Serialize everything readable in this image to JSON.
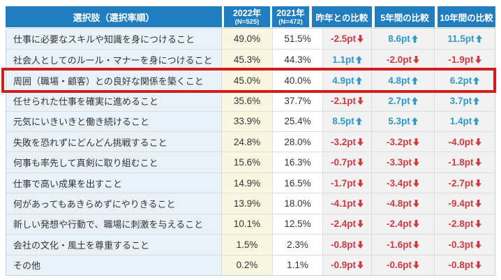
{
  "table": {
    "headers": {
      "choice": "選択肢（選択率順）",
      "y2022": {
        "year": "2022年",
        "n": "(N=525)"
      },
      "y2021": {
        "year": "2021年",
        "n": "(N=472)"
      },
      "cmp_prev": "昨年との比較",
      "cmp_5yr": "5年間の比較",
      "cmp_10yr": "10年間の比較"
    },
    "rows": [
      {
        "label": "仕事に必要なスキルや知識を身につけること",
        "y2022": "49.0%",
        "y2021": "51.5%",
        "prev": {
          "text": "-2.5pt",
          "dir": "down"
        },
        "yr5": {
          "text": "8.6pt",
          "dir": "up"
        },
        "yr10": {
          "text": "11.5pt",
          "dir": "up"
        },
        "highlighted": false
      },
      {
        "label": "社会人としてのルール・マナーを身につけること",
        "y2022": "45.3%",
        "y2021": "44.3%",
        "prev": {
          "text": "1.1pt",
          "dir": "up"
        },
        "yr5": {
          "text": "-2.0pt",
          "dir": "down"
        },
        "yr10": {
          "text": "-1.9pt",
          "dir": "down"
        },
        "highlighted": false
      },
      {
        "label": "周囲（職場・顧客）との良好な関係を築くこと",
        "y2022": "45.0%",
        "y2021": "40.0%",
        "prev": {
          "text": "4.9pt",
          "dir": "up"
        },
        "yr5": {
          "text": "4.8pt",
          "dir": "up"
        },
        "yr10": {
          "text": "6.2pt",
          "dir": "up"
        },
        "highlighted": true
      },
      {
        "label": "任せられた仕事を確実に進めること",
        "y2022": "35.6%",
        "y2021": "37.7%",
        "prev": {
          "text": "-2.1pt",
          "dir": "down"
        },
        "yr5": {
          "text": "2.7pt",
          "dir": "up"
        },
        "yr10": {
          "text": "3.7pt",
          "dir": "up"
        },
        "highlighted": false
      },
      {
        "label": "元気にいきいきと働き続けること",
        "y2022": "33.9%",
        "y2021": "25.4%",
        "prev": {
          "text": "8.5pt",
          "dir": "up"
        },
        "yr5": {
          "text": "5.3pt",
          "dir": "up"
        },
        "yr10": {
          "text": "1.4pt",
          "dir": "up"
        },
        "highlighted": false
      },
      {
        "label": "失敗を恐れずにどんどん挑戦すること",
        "y2022": "24.8%",
        "y2021": "28.0%",
        "prev": {
          "text": "-3.2pt",
          "dir": "down"
        },
        "yr5": {
          "text": "-3.2pt",
          "dir": "down"
        },
        "yr10": {
          "text": "-4.0pt",
          "dir": "down"
        },
        "highlighted": false
      },
      {
        "label": "何事も率先して真剣に取り組むこと",
        "y2022": "15.6%",
        "y2021": "16.3%",
        "prev": {
          "text": "-0.7pt",
          "dir": "down"
        },
        "yr5": {
          "text": "-3.3pt",
          "dir": "down"
        },
        "yr10": {
          "text": "-1.8pt",
          "dir": "down"
        },
        "highlighted": false
      },
      {
        "label": "仕事で高い成果を出すこと",
        "y2022": "14.9%",
        "y2021": "16.5%",
        "prev": {
          "text": "-1.7pt",
          "dir": "down"
        },
        "yr5": {
          "text": "-3.4pt",
          "dir": "down"
        },
        "yr10": {
          "text": "-2.7pt",
          "dir": "down"
        },
        "highlighted": false
      },
      {
        "label": "何があってもあきらめずにやりきること",
        "y2022": "13.9%",
        "y2021": "18.0%",
        "prev": {
          "text": "-4.1pt",
          "dir": "down"
        },
        "yr5": {
          "text": "-4.8pt",
          "dir": "down"
        },
        "yr10": {
          "text": "-9.4pt",
          "dir": "down"
        },
        "highlighted": false
      },
      {
        "label": "新しい発想や行動で、職場に刺激を与えること",
        "y2022": "10.1%",
        "y2021": "12.5%",
        "prev": {
          "text": "-2.4pt",
          "dir": "down"
        },
        "yr5": {
          "text": "-2.4pt",
          "dir": "down"
        },
        "yr10": {
          "text": "-2.8pt",
          "dir": "down"
        },
        "highlighted": false
      },
      {
        "label": "会社の文化・風土を尊重すること",
        "y2022": "1.5%",
        "y2021": "2.3%",
        "prev": {
          "text": "-0.8pt",
          "dir": "down"
        },
        "yr5": {
          "text": "-1.6pt",
          "dir": "down"
        },
        "yr10": {
          "text": "-0.3pt",
          "dir": "down"
        },
        "highlighted": false
      },
      {
        "label": "その他",
        "y2022": "0.2%",
        "y2021": "1.1%",
        "prev": {
          "text": "-0.9pt",
          "dir": "down"
        },
        "yr5": {
          "text": "-0.6pt",
          "dir": "down"
        },
        "yr10": {
          "text": "-0.8pt",
          "dir": "down"
        },
        "highlighted": false
      }
    ]
  },
  "colors": {
    "header_bg": "#1f7dc0",
    "positive": "#3498c3",
    "negative": "#cf3b3e",
    "highlight_border": "#d21d1d",
    "label_bg": "#e9f1f9",
    "col2022_bg": "#faf6e1",
    "cmp_bg": "#f2f2f2"
  },
  "chart_data": {
    "type": "table",
    "columns": [
      "選択肢（選択率順）",
      "2022年 (N=525)",
      "2021年 (N=472)",
      "昨年との比較",
      "5年間の比較",
      "10年間の比較"
    ],
    "units": {
      "y2022": "%",
      "y2021": "%",
      "comparisons": "pt"
    },
    "rows": [
      [
        "仕事に必要なスキルや知識を身につけること",
        49.0,
        51.5,
        -2.5,
        8.6,
        11.5
      ],
      [
        "社会人としてのルール・マナーを身につけること",
        45.3,
        44.3,
        1.1,
        -2.0,
        -1.9
      ],
      [
        "周囲（職場・顧客）との良好な関係を築くこと",
        45.0,
        40.0,
        4.9,
        4.8,
        6.2
      ],
      [
        "任せられた仕事を確実に進めること",
        35.6,
        37.7,
        -2.1,
        2.7,
        3.7
      ],
      [
        "元気にいきいきと働き続けること",
        33.9,
        25.4,
        8.5,
        5.3,
        1.4
      ],
      [
        "失敗を恐れずにどんどん挑戦すること",
        24.8,
        28.0,
        -3.2,
        -3.2,
        -4.0
      ],
      [
        "何事も率先して真剣に取り組むこと",
        15.6,
        16.3,
        -0.7,
        -3.3,
        -1.8
      ],
      [
        "仕事で高い成果を出すこと",
        14.9,
        16.5,
        -1.7,
        -3.4,
        -2.7
      ],
      [
        "何があってもあきらめずにやりきること",
        13.9,
        18.0,
        -4.1,
        -4.8,
        -9.4
      ],
      [
        "新しい発想や行動で、職場に刺激を与えること",
        10.1,
        12.5,
        -2.4,
        -2.4,
        -2.8
      ],
      [
        "会社の文化・風土を尊重すること",
        1.5,
        2.3,
        -0.8,
        -1.6,
        -0.3
      ],
      [
        "その他",
        0.2,
        1.1,
        -0.9,
        -0.6,
        -0.8
      ]
    ],
    "highlighted_row": "周囲（職場・顧客）との良好な関係を築くこと",
    "legend_position": "none",
    "grid": true
  }
}
